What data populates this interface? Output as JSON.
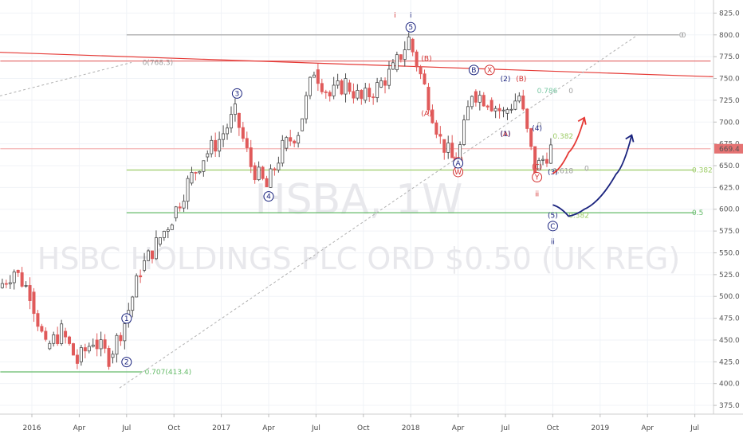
{
  "chart_data": {
    "type": "candlestick",
    "watermark": {
      "symbol": "HSBA, 1W",
      "description": "HSBC HOLDINGS PLC ORD $0.50 (UK REG)"
    },
    "ylim": [
      365,
      840
    ],
    "y_ticks": [
      "375.0",
      "400.0",
      "425.0",
      "450.0",
      "475.0",
      "500.0",
      "525.0",
      "550.0",
      "575.0",
      "600.0",
      "625.0",
      "650.0",
      "675.0",
      "700.0",
      "725.0",
      "750.0",
      "775.0",
      "800.0",
      "825.0"
    ],
    "x_ticks": [
      {
        "label": "2016",
        "x": "2016-01"
      },
      {
        "label": "Apr",
        "x": "2016-04"
      },
      {
        "label": "Jul",
        "x": "2016-07"
      },
      {
        "label": "Oct",
        "x": "2016-10"
      },
      {
        "label": "2017",
        "x": "2017-01"
      },
      {
        "label": "Apr",
        "x": "2017-04"
      },
      {
        "label": "Jul",
        "x": "2017-07"
      },
      {
        "label": "Oct",
        "x": "2017-10"
      },
      {
        "label": "2018",
        "x": "2018-01"
      },
      {
        "label": "Apr",
        "x": "2018-04"
      },
      {
        "label": "Jul",
        "x": "2018-07"
      },
      {
        "label": "Oct",
        "x": "2018-10"
      },
      {
        "label": "2019",
        "x": "2019-01"
      },
      {
        "label": "Apr",
        "x": "2019-04"
      },
      {
        "label": "Jul",
        "x": "2019-07"
      }
    ],
    "last_price": "669.4",
    "price_path": [
      [
        "2015-11",
        510
      ],
      [
        "2015-12",
        530
      ],
      [
        "2016-01",
        505
      ],
      [
        "2016-02",
        440
      ],
      [
        "2016-03",
        460
      ],
      [
        "2016-04",
        425
      ],
      [
        "2016-05",
        450
      ],
      [
        "2016-06",
        430
      ],
      [
        "2016-07",
        470
      ],
      [
        "2016-08",
        530
      ],
      [
        "2016-09",
        560
      ],
      [
        "2016-10",
        590
      ],
      [
        "2016-11",
        630
      ],
      [
        "2016-12",
        660
      ],
      [
        "2017-01",
        680
      ],
      [
        "2017-02",
        710
      ],
      [
        "2017-03",
        650
      ],
      [
        "2017-04",
        625
      ],
      [
        "2017-05",
        670
      ],
      [
        "2017-06",
        690
      ],
      [
        "2017-07",
        760
      ],
      [
        "2017-08",
        730
      ],
      [
        "2017-09",
        745
      ],
      [
        "2017-10",
        725
      ],
      [
        "2017-11",
        740
      ],
      [
        "2017-12",
        760
      ],
      [
        "2018-01",
        795
      ],
      [
        "2018-02",
        740
      ],
      [
        "2018-03",
        680
      ],
      [
        "2018-04",
        650
      ],
      [
        "2018-05",
        735
      ],
      [
        "2018-06",
        725
      ],
      [
        "2018-07",
        710
      ],
      [
        "2018-08",
        730
      ],
      [
        "2018-09",
        645
      ],
      [
        "2018-10",
        669.4
      ]
    ],
    "horizontal_levels": [
      {
        "price": 800,
        "color": "#9e9e9e",
        "from": "2016-07",
        "to": "2019-06",
        "label": "0"
      },
      {
        "price": 770,
        "color": "#e57373",
        "from": "2015-11",
        "to": "2019-08",
        "label": ""
      },
      {
        "price": 669.4,
        "color": "#f4b4b4",
        "from": "2015-11",
        "to": "2019-08",
        "label": ""
      },
      {
        "price": 645,
        "color": "#9ccc65",
        "from": "2016-07",
        "to": "2019-07",
        "label": "0.382"
      },
      {
        "price": 596,
        "color": "#66bb6a",
        "from": "2016-07",
        "to": "2019-07",
        "label": "0.5"
      },
      {
        "price": 413.4,
        "color": "#66bb6a",
        "from": "2015-11",
        "to": "2016-08",
        "label": "0.707(413.4)"
      }
    ],
    "fib_markers": [
      {
        "text": "0.786",
        "x": "2018-09",
        "y": 736,
        "color": "#7bc8a4"
      },
      {
        "text": "0",
        "x": "2018-11",
        "y": 736,
        "color": "#9e9e9e"
      },
      {
        "text": "0.382",
        "x": "2018-10",
        "y": 684,
        "color": "#9ccc65"
      },
      {
        "text": "0",
        "x": "2018-09",
        "y": 697,
        "color": "#9e9e9e"
      },
      {
        "text": "1.618",
        "x": "2018-10",
        "y": 644,
        "color": "#9e9e9e"
      },
      {
        "text": "0",
        "x": "2018-12",
        "y": 647,
        "color": "#9e9e9e"
      },
      {
        "text": "0.382",
        "x": "2018-11",
        "y": 593,
        "color": "#9ccc65"
      },
      {
        "text": "0(768.3)",
        "x": "2016-08",
        "y": 768.3,
        "color": "#9e9e9e"
      },
      {
        "text": "0",
        "x": "2019-06",
        "y": 800,
        "color": "#9e9e9e"
      }
    ],
    "wave_labels": [
      {
        "text": "1",
        "x": "2016-07",
        "y": 472,
        "circle": true,
        "color": "#1a237e"
      },
      {
        "text": "2",
        "x": "2016-07",
        "y": 422,
        "circle": true,
        "color": "#1a237e"
      },
      {
        "text": "3",
        "x": "2017-02",
        "y": 730,
        "circle": true,
        "color": "#1a237e"
      },
      {
        "text": "4",
        "x": "2017-04",
        "y": 612,
        "circle": true,
        "color": "#1a237e"
      },
      {
        "text": "5",
        "x": "2018-01",
        "y": 806,
        "circle": true,
        "color": "#1a237e"
      },
      {
        "text": "i",
        "x": "2017-12",
        "y": 820,
        "circle": false,
        "color": "#d32f2f"
      },
      {
        "text": "i",
        "x": "2018-01",
        "y": 820,
        "circle": false,
        "color": "#1a237e"
      },
      {
        "text": "(B)",
        "x": "2018-02",
        "y": 770,
        "circle": false,
        "color": "#d32f2f"
      },
      {
        "text": "(A)",
        "x": "2018-02",
        "y": 707,
        "circle": false,
        "color": "#d32f2f"
      },
      {
        "text": "(C)",
        "x": "2018-04",
        "y": 654,
        "circle": false,
        "color": "#d32f2f"
      },
      {
        "text": "W",
        "x": "2018-04",
        "y": 640,
        "circle": true,
        "color": "#d32f2f"
      },
      {
        "text": "A",
        "x": "2018-04",
        "y": 650,
        "circle": true,
        "color": "#1a237e"
      },
      {
        "text": "B",
        "x": "2018-05",
        "y": 757,
        "circle": true,
        "color": "#1a237e"
      },
      {
        "text": "X",
        "x": "2018-06",
        "y": 757,
        "circle": true,
        "color": "#d32f2f"
      },
      {
        "text": "(2)",
        "x": "2018-07",
        "y": 747,
        "circle": false,
        "color": "#1a237e"
      },
      {
        "text": "(B)",
        "x": "2018-08",
        "y": 747,
        "circle": false,
        "color": "#d32f2f"
      },
      {
        "text": "(A)",
        "x": "2018-07",
        "y": 684,
        "circle": false,
        "color": "#d32f2f"
      },
      {
        "text": "(1)",
        "x": "2018-07",
        "y": 684,
        "circle": false,
        "color": "#1a237e"
      },
      {
        "text": "(4)",
        "x": "2018-09",
        "y": 690,
        "circle": false,
        "color": "#1a237e"
      },
      {
        "text": "(C)",
        "x": "2018-09",
        "y": 646,
        "circle": false,
        "color": "#d32f2f"
      },
      {
        "text": "(3)",
        "x": "2018-10",
        "y": 640,
        "circle": false,
        "color": "#1a237e"
      },
      {
        "text": "Y",
        "x": "2018-09",
        "y": 634,
        "circle": true,
        "color": "#d32f2f"
      },
      {
        "text": "ii",
        "x": "2018-09",
        "y": 615,
        "circle": false,
        "color": "#d32f2f"
      },
      {
        "text": "(5)",
        "x": "2018-10",
        "y": 590,
        "circle": false,
        "color": "#1a237e"
      },
      {
        "text": "C",
        "x": "2018-10",
        "y": 578,
        "circle": true,
        "color": "#1a237e"
      },
      {
        "text": "ii",
        "x": "2018-10",
        "y": 560,
        "circle": false,
        "color": "#1a237e"
      }
    ],
    "projections": [
      {
        "color": "#e53935",
        "points": [
          [
            "2018-10",
            641
          ],
          [
            "2018-11",
            665
          ],
          [
            "2018-12",
            705
          ]
        ]
      },
      {
        "color": "#1a237e",
        "points": [
          [
            "2018-10",
            605
          ],
          [
            "2018-11",
            592
          ],
          [
            "2018-12",
            600
          ],
          [
            "2019-02",
            640
          ],
          [
            "2019-03",
            685
          ]
        ]
      }
    ]
  }
}
